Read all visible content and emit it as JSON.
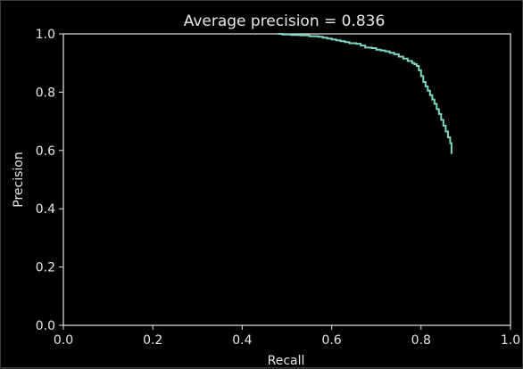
{
  "chart_data": {
    "type": "line",
    "title": "Average precision = 0.836",
    "xlabel": "Recall",
    "ylabel": "Precision",
    "xlim": [
      0.0,
      1.0
    ],
    "ylim": [
      0.0,
      1.0
    ],
    "xticks": [
      "0.0",
      "0.2",
      "0.4",
      "0.6",
      "0.8",
      "1.0"
    ],
    "yticks": [
      "0.0",
      "0.2",
      "0.4",
      "0.6",
      "0.8",
      "1.0"
    ],
    "grid": false,
    "legend": "none",
    "series": [
      {
        "color": "#7fd6c2",
        "step": true,
        "points": [
          [
            0.48,
            1.0
          ],
          [
            0.49,
            0.998
          ],
          [
            0.51,
            0.996
          ],
          [
            0.53,
            0.995
          ],
          [
            0.55,
            0.992
          ],
          [
            0.57,
            0.99
          ],
          [
            0.58,
            0.987
          ],
          [
            0.59,
            0.984
          ],
          [
            0.6,
            0.981
          ],
          [
            0.61,
            0.978
          ],
          [
            0.62,
            0.975
          ],
          [
            0.63,
            0.972
          ],
          [
            0.64,
            0.968
          ],
          [
            0.655,
            0.966
          ],
          [
            0.665,
            0.96
          ],
          [
            0.675,
            0.953
          ],
          [
            0.69,
            0.951
          ],
          [
            0.7,
            0.946
          ],
          [
            0.71,
            0.943
          ],
          [
            0.72,
            0.94
          ],
          [
            0.73,
            0.935
          ],
          [
            0.74,
            0.93
          ],
          [
            0.75,
            0.922
          ],
          [
            0.76,
            0.915
          ],
          [
            0.77,
            0.907
          ],
          [
            0.78,
            0.9
          ],
          [
            0.785,
            0.896
          ],
          [
            0.79,
            0.89
          ],
          [
            0.795,
            0.875
          ],
          [
            0.8,
            0.855
          ],
          [
            0.805,
            0.835
          ],
          [
            0.81,
            0.82
          ],
          [
            0.815,
            0.805
          ],
          [
            0.82,
            0.79
          ],
          [
            0.825,
            0.775
          ],
          [
            0.83,
            0.76
          ],
          [
            0.835,
            0.742
          ],
          [
            0.84,
            0.725
          ],
          [
            0.845,
            0.705
          ],
          [
            0.85,
            0.685
          ],
          [
            0.855,
            0.665
          ],
          [
            0.86,
            0.645
          ],
          [
            0.865,
            0.625
          ],
          [
            0.868,
            0.605
          ],
          [
            0.868,
            0.588
          ]
        ]
      }
    ]
  }
}
